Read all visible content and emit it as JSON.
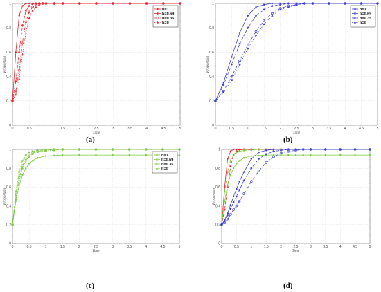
{
  "captions": [
    "(a)",
    "(b)",
    "(c)",
    "(d)"
  ],
  "colors": {
    "red": "#e8212b",
    "blue": "#3a3fd0",
    "green": "#79c93a",
    "grid": "#d9d9d9"
  },
  "chart_data": [
    {
      "type": "line",
      "caption": "(a)",
      "xlabel": "Time",
      "ylabel": "Proportion",
      "xlim": [
        0,
        5
      ],
      "ylim": [
        0,
        1
      ],
      "xticks": [
        "0",
        "0.5",
        "1",
        "1.5",
        "2",
        "2.5",
        "3",
        "3.5",
        "4",
        "4.5",
        "5"
      ],
      "yticks": [
        "0",
        "0.2",
        "0.4",
        "0.6",
        "0.8",
        "1"
      ],
      "grid": true,
      "legend": "top-right",
      "legend_entries": [
        "b=1",
        "b=0.69",
        "b=0.35",
        "b=0"
      ],
      "x": [
        0,
        0.1,
        0.2,
        0.3,
        0.4,
        0.5,
        0.6,
        0.7,
        0.8,
        0.9,
        1.0,
        1.25,
        1.5,
        2,
        2.5,
        3,
        3.5,
        4,
        4.5,
        5
      ],
      "series": [
        {
          "name": "b=1",
          "color": "red",
          "dash": "solid",
          "marker": "dot",
          "values": [
            0.2,
            0.6,
            0.9,
            0.98,
            1.0,
            1.0,
            1.0,
            1.0,
            1.0,
            1.0,
            1.0,
            1.0,
            1.0,
            1.0,
            1.0,
            1.0,
            1.0,
            1.0,
            1.0,
            1.0
          ]
        },
        {
          "name": "b=0.69",
          "color": "red",
          "dash": "dash",
          "marker": "star",
          "values": [
            0.2,
            0.36,
            0.6,
            0.82,
            0.94,
            0.98,
            0.995,
            1.0,
            1.0,
            1.0,
            1.0,
            1.0,
            1.0,
            1.0,
            1.0,
            1.0,
            1.0,
            1.0,
            1.0,
            1.0
          ]
        },
        {
          "name": "b=0.35",
          "color": "red",
          "dash": "dashdot",
          "marker": "circle",
          "values": [
            0.2,
            0.28,
            0.45,
            0.68,
            0.85,
            0.93,
            0.97,
            0.99,
            1.0,
            1.0,
            1.0,
            1.0,
            1.0,
            1.0,
            1.0,
            1.0,
            1.0,
            1.0,
            1.0,
            1.0
          ]
        },
        {
          "name": "b=0",
          "color": "red",
          "dash": "dot",
          "marker": "triangle",
          "values": [
            0.2,
            0.25,
            0.38,
            0.58,
            0.76,
            0.88,
            0.94,
            0.97,
            0.99,
            1.0,
            1.0,
            1.0,
            1.0,
            1.0,
            1.0,
            1.0,
            1.0,
            1.0,
            1.0,
            1.0
          ]
        }
      ]
    },
    {
      "type": "line",
      "caption": "(b)",
      "xlabel": "Time",
      "ylabel": "Proportion",
      "xlim": [
        0,
        5
      ],
      "ylim": [
        0,
        1
      ],
      "xticks": [
        "0",
        "0.5",
        "1",
        "1.5",
        "2",
        "2.5",
        "3",
        "3.5",
        "4",
        "4.5",
        "5"
      ],
      "yticks": [
        "0",
        "0.2",
        "0.4",
        "0.6",
        "0.8",
        "1"
      ],
      "grid": true,
      "legend": "top-right",
      "legend_entries": [
        "b=1",
        "b=0.69",
        "b=0.35",
        "b=0"
      ],
      "x": [
        0,
        0.25,
        0.5,
        0.75,
        1.0,
        1.25,
        1.5,
        1.75,
        2.0,
        2.25,
        2.5,
        2.75,
        3.0,
        3.5,
        4.0,
        4.5,
        5.0
      ],
      "series": [
        {
          "name": "b=1",
          "color": "blue",
          "dash": "solid",
          "marker": "dot",
          "values": [
            0.2,
            0.35,
            0.56,
            0.76,
            0.9,
            0.97,
            0.99,
            1.0,
            1.0,
            1.0,
            1.0,
            1.0,
            1.0,
            1.0,
            1.0,
            1.0,
            1.0
          ]
        },
        {
          "name": "b=0.69",
          "color": "blue",
          "dash": "dash",
          "marker": "star",
          "values": [
            0.2,
            0.33,
            0.5,
            0.67,
            0.8,
            0.9,
            0.95,
            0.98,
            0.99,
            1.0,
            1.0,
            1.0,
            1.0,
            1.0,
            1.0,
            1.0,
            1.0
          ]
        },
        {
          "name": "b=0.35",
          "color": "blue",
          "dash": "dashdot",
          "marker": "circle",
          "values": [
            0.2,
            0.28,
            0.4,
            0.53,
            0.66,
            0.77,
            0.86,
            0.92,
            0.96,
            0.98,
            0.99,
            1.0,
            1.0,
            1.0,
            1.0,
            1.0,
            1.0
          ]
        },
        {
          "name": "b=0",
          "color": "blue",
          "dash": "dot",
          "marker": "triangle",
          "values": [
            0.2,
            0.27,
            0.37,
            0.5,
            0.63,
            0.74,
            0.83,
            0.9,
            0.95,
            0.97,
            0.99,
            1.0,
            1.0,
            1.0,
            1.0,
            1.0,
            1.0
          ]
        }
      ]
    },
    {
      "type": "line",
      "caption": "(c)",
      "xlabel": "Time",
      "ylabel": "Proportion",
      "xlim": [
        0,
        5
      ],
      "ylim": [
        0,
        1
      ],
      "xticks": [
        "0",
        "0.5",
        "1",
        "1.5",
        "2",
        "2.5",
        "3",
        "3.5",
        "4",
        "4.5",
        "5"
      ],
      "yticks": [
        "0",
        "0.2",
        "0.4",
        "0.6",
        "0.8",
        "1"
      ],
      "grid": true,
      "legend": "top-right",
      "legend_entries": [
        "b=1",
        "b=0.69",
        "b=0.35",
        "b=0"
      ],
      "x": [
        0,
        0.1,
        0.2,
        0.3,
        0.4,
        0.5,
        0.6,
        0.75,
        1.0,
        1.25,
        1.5,
        2.0,
        2.5,
        3.0,
        3.5,
        4.0,
        4.5,
        5.0
      ],
      "series": [
        {
          "name": "b=1",
          "color": "green",
          "dash": "solid",
          "marker": "dot",
          "values": [
            0.2,
            0.45,
            0.62,
            0.73,
            0.8,
            0.85,
            0.88,
            0.91,
            0.93,
            0.935,
            0.94,
            0.94,
            0.94,
            0.94,
            0.94,
            0.94,
            0.94,
            0.94
          ]
        },
        {
          "name": "b=0.69",
          "color": "green",
          "dash": "dash",
          "marker": "star",
          "values": [
            0.2,
            0.55,
            0.76,
            0.88,
            0.94,
            0.97,
            0.98,
            0.99,
            0.995,
            1.0,
            1.0,
            1.0,
            1.0,
            1.0,
            1.0,
            1.0,
            1.0,
            1.0
          ]
        },
        {
          "name": "b=0.35",
          "color": "green",
          "dash": "dashdot",
          "marker": "circle",
          "values": [
            0.2,
            0.5,
            0.7,
            0.83,
            0.9,
            0.94,
            0.96,
            0.98,
            0.99,
            1.0,
            1.0,
            1.0,
            1.0,
            1.0,
            1.0,
            1.0,
            1.0,
            1.0
          ]
        },
        {
          "name": "b=0",
          "color": "green",
          "dash": "dot",
          "marker": "triangle",
          "values": [
            0.2,
            0.47,
            0.67,
            0.8,
            0.88,
            0.92,
            0.95,
            0.97,
            0.985,
            0.99,
            1.0,
            1.0,
            1.0,
            1.0,
            1.0,
            1.0,
            1.0,
            1.0
          ]
        }
      ]
    },
    {
      "type": "line",
      "caption": "(d)",
      "xlabel": "Time",
      "ylabel": "Proportion",
      "xlim": [
        0,
        5
      ],
      "ylim": [
        0,
        1
      ],
      "xticks": [
        "0",
        "0.5",
        "1",
        "1.5",
        "2",
        "2.5",
        "3",
        "3.5",
        "4",
        "4.5",
        "5"
      ],
      "yticks": [
        "0",
        "0.2",
        "0.4",
        "0.6",
        "0.8",
        "1"
      ],
      "grid": true,
      "legend": "none",
      "legend_entries": [],
      "x": [
        0,
        0.1,
        0.2,
        0.3,
        0.4,
        0.5,
        0.6,
        0.75,
        1.0,
        1.25,
        1.5,
        1.75,
        2.0,
        2.25,
        2.5,
        2.75,
        3.0,
        3.5,
        4.0,
        4.5,
        5.0
      ],
      "series": [
        {
          "name": "",
          "color": "red",
          "dash": "solid",
          "marker": "dot",
          "values": [
            0.2,
            0.6,
            0.9,
            0.98,
            1.0,
            1.0,
            1.0,
            1.0,
            1.0,
            1.0,
            1.0,
            1.0,
            1.0,
            1.0,
            1.0,
            1.0,
            1.0,
            1.0,
            1.0,
            1.0,
            1.0
          ]
        },
        {
          "name": "",
          "color": "red",
          "dash": "dash",
          "marker": "star",
          "values": [
            0.2,
            0.36,
            0.6,
            0.82,
            0.94,
            0.98,
            0.995,
            1.0,
            1.0,
            1.0,
            1.0,
            1.0,
            1.0,
            1.0,
            1.0,
            1.0,
            1.0,
            1.0,
            1.0,
            1.0,
            1.0
          ]
        },
        {
          "name": "",
          "color": "green",
          "dash": "solid",
          "marker": "dot",
          "values": [
            0.2,
            0.45,
            0.62,
            0.73,
            0.8,
            0.85,
            0.88,
            0.91,
            0.93,
            0.935,
            0.94,
            0.94,
            0.94,
            0.94,
            0.94,
            0.94,
            0.94,
            0.94,
            0.94,
            0.94,
            0.94
          ]
        },
        {
          "name": "",
          "color": "green",
          "dash": "dash",
          "marker": "star",
          "values": [
            0.2,
            0.55,
            0.76,
            0.88,
            0.94,
            0.97,
            0.98,
            0.99,
            0.995,
            1.0,
            1.0,
            1.0,
            1.0,
            1.0,
            1.0,
            1.0,
            1.0,
            1.0,
            1.0,
            1.0,
            1.0
          ]
        },
        {
          "name": "",
          "color": "blue",
          "dash": "solid",
          "marker": "dot",
          "values": [
            0.2,
            0.25,
            0.32,
            0.41,
            0.5,
            0.58,
            0.66,
            0.76,
            0.9,
            0.97,
            0.99,
            1.0,
            1.0,
            1.0,
            1.0,
            1.0,
            1.0,
            1.0,
            1.0,
            1.0,
            1.0
          ]
        },
        {
          "name": "",
          "color": "blue",
          "dash": "dash",
          "marker": "star",
          "values": [
            0.2,
            0.24,
            0.3,
            0.37,
            0.44,
            0.5,
            0.57,
            0.67,
            0.8,
            0.9,
            0.95,
            0.98,
            0.99,
            1.0,
            1.0,
            1.0,
            1.0,
            1.0,
            1.0,
            1.0,
            1.0
          ]
        },
        {
          "name": "",
          "color": "blue",
          "dash": "dashdot",
          "marker": "circle",
          "values": [
            0.2,
            0.22,
            0.26,
            0.31,
            0.36,
            0.4,
            0.45,
            0.53,
            0.66,
            0.77,
            0.86,
            0.92,
            0.96,
            0.98,
            0.99,
            1.0,
            1.0,
            1.0,
            1.0,
            1.0,
            1.0
          ]
        }
      ]
    }
  ]
}
